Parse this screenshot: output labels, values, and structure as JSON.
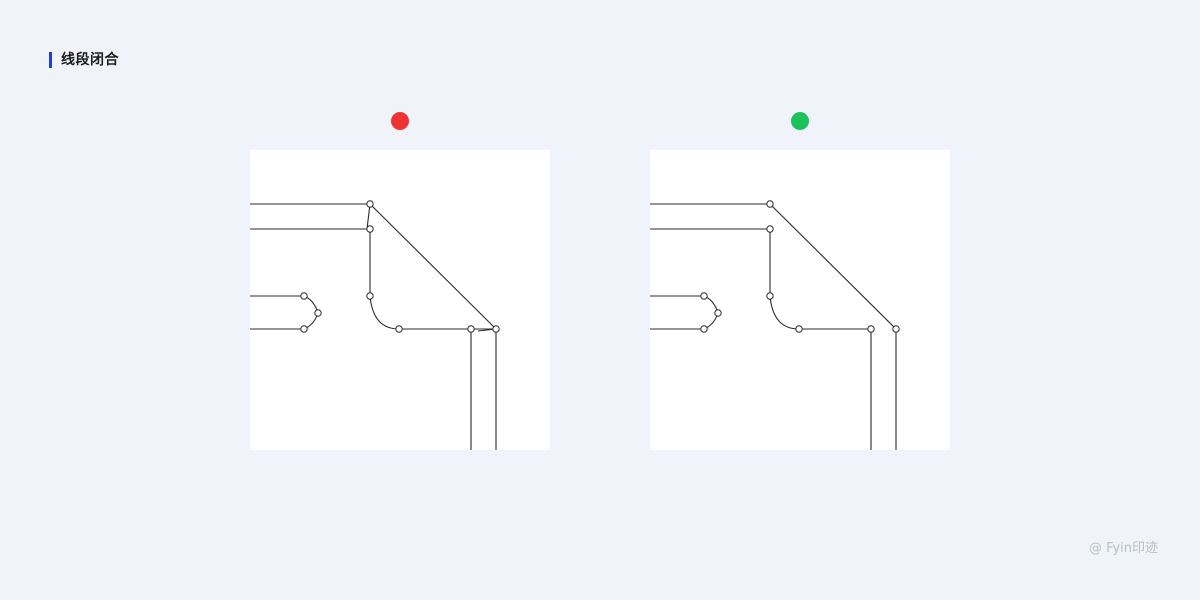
{
  "heading": {
    "title": "线段闭合",
    "accent_color": "#1f3fd6"
  },
  "examples": [
    {
      "verdict": "incorrect",
      "dot_color": "#f03434"
    },
    {
      "verdict": "correct",
      "dot_color": "#1cc25a"
    }
  ],
  "watermark": {
    "text": "@ Fyin印迹"
  }
}
